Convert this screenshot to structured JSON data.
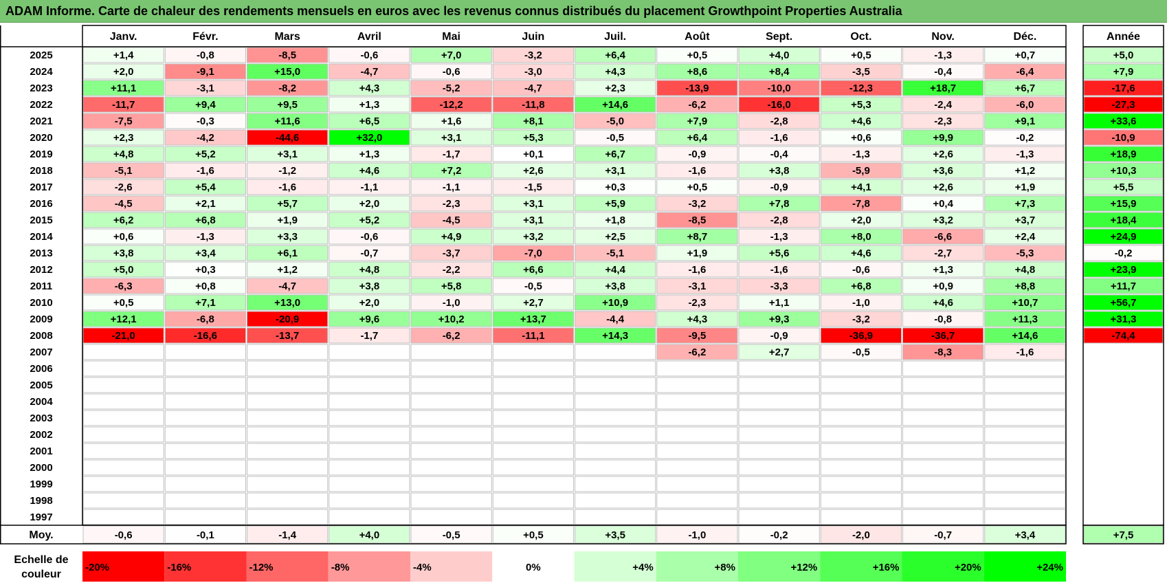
{
  "title": "ADAM Informe. Carte de chaleur des rendements mensuels en euros avec les revenus connus distribués du placement Growthpoint Properties Australia",
  "chart_data": {
    "type": "heatmap",
    "title": "ADAM Informe. Carte de chaleur des rendements mensuels en euros avec les revenus connus distribués du placement Growthpoint Properties Australia",
    "columns": [
      "Janv.",
      "Févr.",
      "Mars",
      "Avril",
      "Mai",
      "Juin",
      "Juil.",
      "Août",
      "Sept.",
      "Oct.",
      "Nov.",
      "Déc."
    ],
    "year_column_label": "Année",
    "average_row_label": "Moy.",
    "rows": [
      {
        "year": "2025",
        "values": [
          "+1,4",
          "-0,8",
          "-8,5",
          "-0,6",
          "+7,0",
          "-3,2",
          "+6,4",
          "+0,5",
          "+4,0",
          "+0,5",
          "-1,3",
          "+0,7"
        ],
        "annual": "+5,0"
      },
      {
        "year": "2024",
        "values": [
          "+2,0",
          "-9,1",
          "+15,0",
          "-4,7",
          "-0,6",
          "-3,0",
          "+4,3",
          "+8,6",
          "+8,4",
          "-3,5",
          "-0,4",
          "-6,4"
        ],
        "annual": "+7,9"
      },
      {
        "year": "2023",
        "values": [
          "+11,1",
          "-3,1",
          "-8,2",
          "+4,3",
          "-5,2",
          "-4,7",
          "+2,3",
          "-13,9",
          "-10,0",
          "-12,3",
          "+18,7",
          "+6,7"
        ],
        "annual": "-17,6"
      },
      {
        "year": "2022",
        "values": [
          "-11,7",
          "+9,4",
          "+9,5",
          "+1,3",
          "-12,2",
          "-11,8",
          "+14,6",
          "-6,2",
          "-16,0",
          "+5,3",
          "-2,4",
          "-6,0"
        ],
        "annual": "-27,3"
      },
      {
        "year": "2021",
        "values": [
          "-7,5",
          "-0,3",
          "+11,6",
          "+6,5",
          "+1,6",
          "+8,1",
          "-5,0",
          "+7,9",
          "-2,8",
          "+4,6",
          "-2,3",
          "+9,1"
        ],
        "annual": "+33,6"
      },
      {
        "year": "2020",
        "values": [
          "+2,3",
          "-4,2",
          "-44,6",
          "+32,0",
          "+3,1",
          "+5,3",
          "-0,5",
          "+6,4",
          "-1,6",
          "+0,6",
          "+9,9",
          "-0,2"
        ],
        "annual": "-10,9"
      },
      {
        "year": "2019",
        "values": [
          "+4,8",
          "+5,2",
          "+3,1",
          "+1,3",
          "-1,7",
          "+0,1",
          "+6,7",
          "-0,9",
          "-0,4",
          "-1,3",
          "+2,6",
          "-1,3"
        ],
        "annual": "+18,9"
      },
      {
        "year": "2018",
        "values": [
          "-5,1",
          "-1,6",
          "-1,2",
          "+4,6",
          "+7,2",
          "+2,6",
          "+3,1",
          "-1,6",
          "+3,8",
          "-5,9",
          "+3,6",
          "+1,2"
        ],
        "annual": "+10,3"
      },
      {
        "year": "2017",
        "values": [
          "-2,6",
          "+5,4",
          "-1,6",
          "-1,1",
          "-1,1",
          "-1,5",
          "+0,3",
          "+0,5",
          "-0,9",
          "+4,1",
          "+2,6",
          "+1,9"
        ],
        "annual": "+5,5"
      },
      {
        "year": "2016",
        "values": [
          "-4,5",
          "+2,1",
          "+5,7",
          "+2,0",
          "-2,3",
          "+3,1",
          "+5,9",
          "-3,2",
          "+7,8",
          "-7,8",
          "+0,4",
          "+7,3"
        ],
        "annual": "+15,9"
      },
      {
        "year": "2015",
        "values": [
          "+6,2",
          "+6,8",
          "+1,9",
          "+5,2",
          "-4,5",
          "+3,1",
          "+1,8",
          "-8,5",
          "-2,8",
          "+2,0",
          "+3,2",
          "+3,7"
        ],
        "annual": "+18,4"
      },
      {
        "year": "2014",
        "values": [
          "+0,6",
          "-1,3",
          "+3,3",
          "-0,6",
          "+4,9",
          "+3,2",
          "+2,5",
          "+8,7",
          "-1,3",
          "+8,0",
          "-6,6",
          "+2,4"
        ],
        "annual": "+24,9"
      },
      {
        "year": "2013",
        "values": [
          "+3,8",
          "+3,4",
          "+6,1",
          "-0,7",
          "-3,7",
          "-7,0",
          "-5,1",
          "+1,9",
          "+5,6",
          "+4,6",
          "-2,7",
          "-5,3"
        ],
        "annual": "-0,2"
      },
      {
        "year": "2012",
        "values": [
          "+5,0",
          "+0,3",
          "+1,2",
          "+4,8",
          "-2,2",
          "+6,6",
          "+4,4",
          "-1,6",
          "-1,6",
          "-0,6",
          "+1,3",
          "+4,8"
        ],
        "annual": "+23,9"
      },
      {
        "year": "2011",
        "values": [
          "-6,3",
          "+0,8",
          "-4,7",
          "+3,8",
          "+5,8",
          "-0,5",
          "+3,8",
          "-3,1",
          "-3,3",
          "+6,8",
          "+0,9",
          "+8,8"
        ],
        "annual": "+11,7"
      },
      {
        "year": "2010",
        "values": [
          "+0,5",
          "+7,1",
          "+13,0",
          "+2,0",
          "-1,0",
          "+2,7",
          "+10,9",
          "-2,3",
          "+1,1",
          "-1,0",
          "+4,6",
          "+10,7"
        ],
        "annual": "+56,7"
      },
      {
        "year": "2009",
        "values": [
          "+12,1",
          "-6,8",
          "-20,9",
          "+9,6",
          "+10,2",
          "+13,7",
          "-4,4",
          "+4,3",
          "+9,3",
          "-3,2",
          "-0,8",
          "+11,3"
        ],
        "annual": "+31,3"
      },
      {
        "year": "2008",
        "values": [
          "-21,0",
          "-16,6",
          "-13,7",
          "-1,7",
          "-6,2",
          "-11,1",
          "+14,3",
          "-9,5",
          "-0,9",
          "-36,9",
          "-36,7",
          "+14,6"
        ],
        "annual": "-74,4"
      },
      {
        "year": "2007",
        "values": [
          "",
          "",
          "",
          "",
          "",
          "",
          "",
          "-6,2",
          "+2,7",
          "-0,5",
          "-8,3",
          "-1,6"
        ],
        "annual": ""
      },
      {
        "year": "2006",
        "values": [
          "",
          "",
          "",
          "",
          "",
          "",
          "",
          "",
          "",
          "",
          "",
          ""
        ],
        "annual": ""
      },
      {
        "year": "2005",
        "values": [
          "",
          "",
          "",
          "",
          "",
          "",
          "",
          "",
          "",
          "",
          "",
          ""
        ],
        "annual": ""
      },
      {
        "year": "2004",
        "values": [
          "",
          "",
          "",
          "",
          "",
          "",
          "",
          "",
          "",
          "",
          "",
          ""
        ],
        "annual": ""
      },
      {
        "year": "2003",
        "values": [
          "",
          "",
          "",
          "",
          "",
          "",
          "",
          "",
          "",
          "",
          "",
          ""
        ],
        "annual": ""
      },
      {
        "year": "2002",
        "values": [
          "",
          "",
          "",
          "",
          "",
          "",
          "",
          "",
          "",
          "",
          "",
          ""
        ],
        "annual": ""
      },
      {
        "year": "2001",
        "values": [
          "",
          "",
          "",
          "",
          "",
          "",
          "",
          "",
          "",
          "",
          "",
          ""
        ],
        "annual": ""
      },
      {
        "year": "2000",
        "values": [
          "",
          "",
          "",
          "",
          "",
          "",
          "",
          "",
          "",
          "",
          "",
          ""
        ],
        "annual": ""
      },
      {
        "year": "1999",
        "values": [
          "",
          "",
          "",
          "",
          "",
          "",
          "",
          "",
          "",
          "",
          "",
          ""
        ],
        "annual": ""
      },
      {
        "year": "1998",
        "values": [
          "",
          "",
          "",
          "",
          "",
          "",
          "",
          "",
          "",
          "",
          "",
          ""
        ],
        "annual": ""
      },
      {
        "year": "1997",
        "values": [
          "",
          "",
          "",
          "",
          "",
          "",
          "",
          "",
          "",
          "",
          "",
          ""
        ],
        "annual": ""
      }
    ],
    "averages": [
      "-0,6",
      "-0,1",
      "-1,4",
      "+4,0",
      "-0,5",
      "+0,5",
      "+3,5",
      "-1,0",
      "-0,2",
      "-2,0",
      "-0,7",
      "+3,4"
    ],
    "average_annual": "+7,5",
    "scale_label": "Echelle de couleur",
    "scale": [
      {
        "label": "-20%",
        "value": -20,
        "color": "#ff0000"
      },
      {
        "label": "-16%",
        "value": -16,
        "color": "#ff3333"
      },
      {
        "label": "-12%",
        "value": -12,
        "color": "#ff6666"
      },
      {
        "label": "-8%",
        "value": -8,
        "color": "#ff9999"
      },
      {
        "label": "-4%",
        "value": -4,
        "color": "#ffcccc"
      },
      {
        "label": "0%",
        "value": 0,
        "color": "#ffffff"
      },
      {
        "label": "+4%",
        "value": 4,
        "color": "#d5ffd5"
      },
      {
        "label": "+8%",
        "value": 8,
        "color": "#aaffaa"
      },
      {
        "label": "+12%",
        "value": 12,
        "color": "#80ff80"
      },
      {
        "label": "+16%",
        "value": 16,
        "color": "#55ff55"
      },
      {
        "label": "+20%",
        "value": 20,
        "color": "#2bff2b"
      },
      {
        "label": "+24%",
        "value": 24,
        "color": "#00ff00"
      }
    ]
  }
}
